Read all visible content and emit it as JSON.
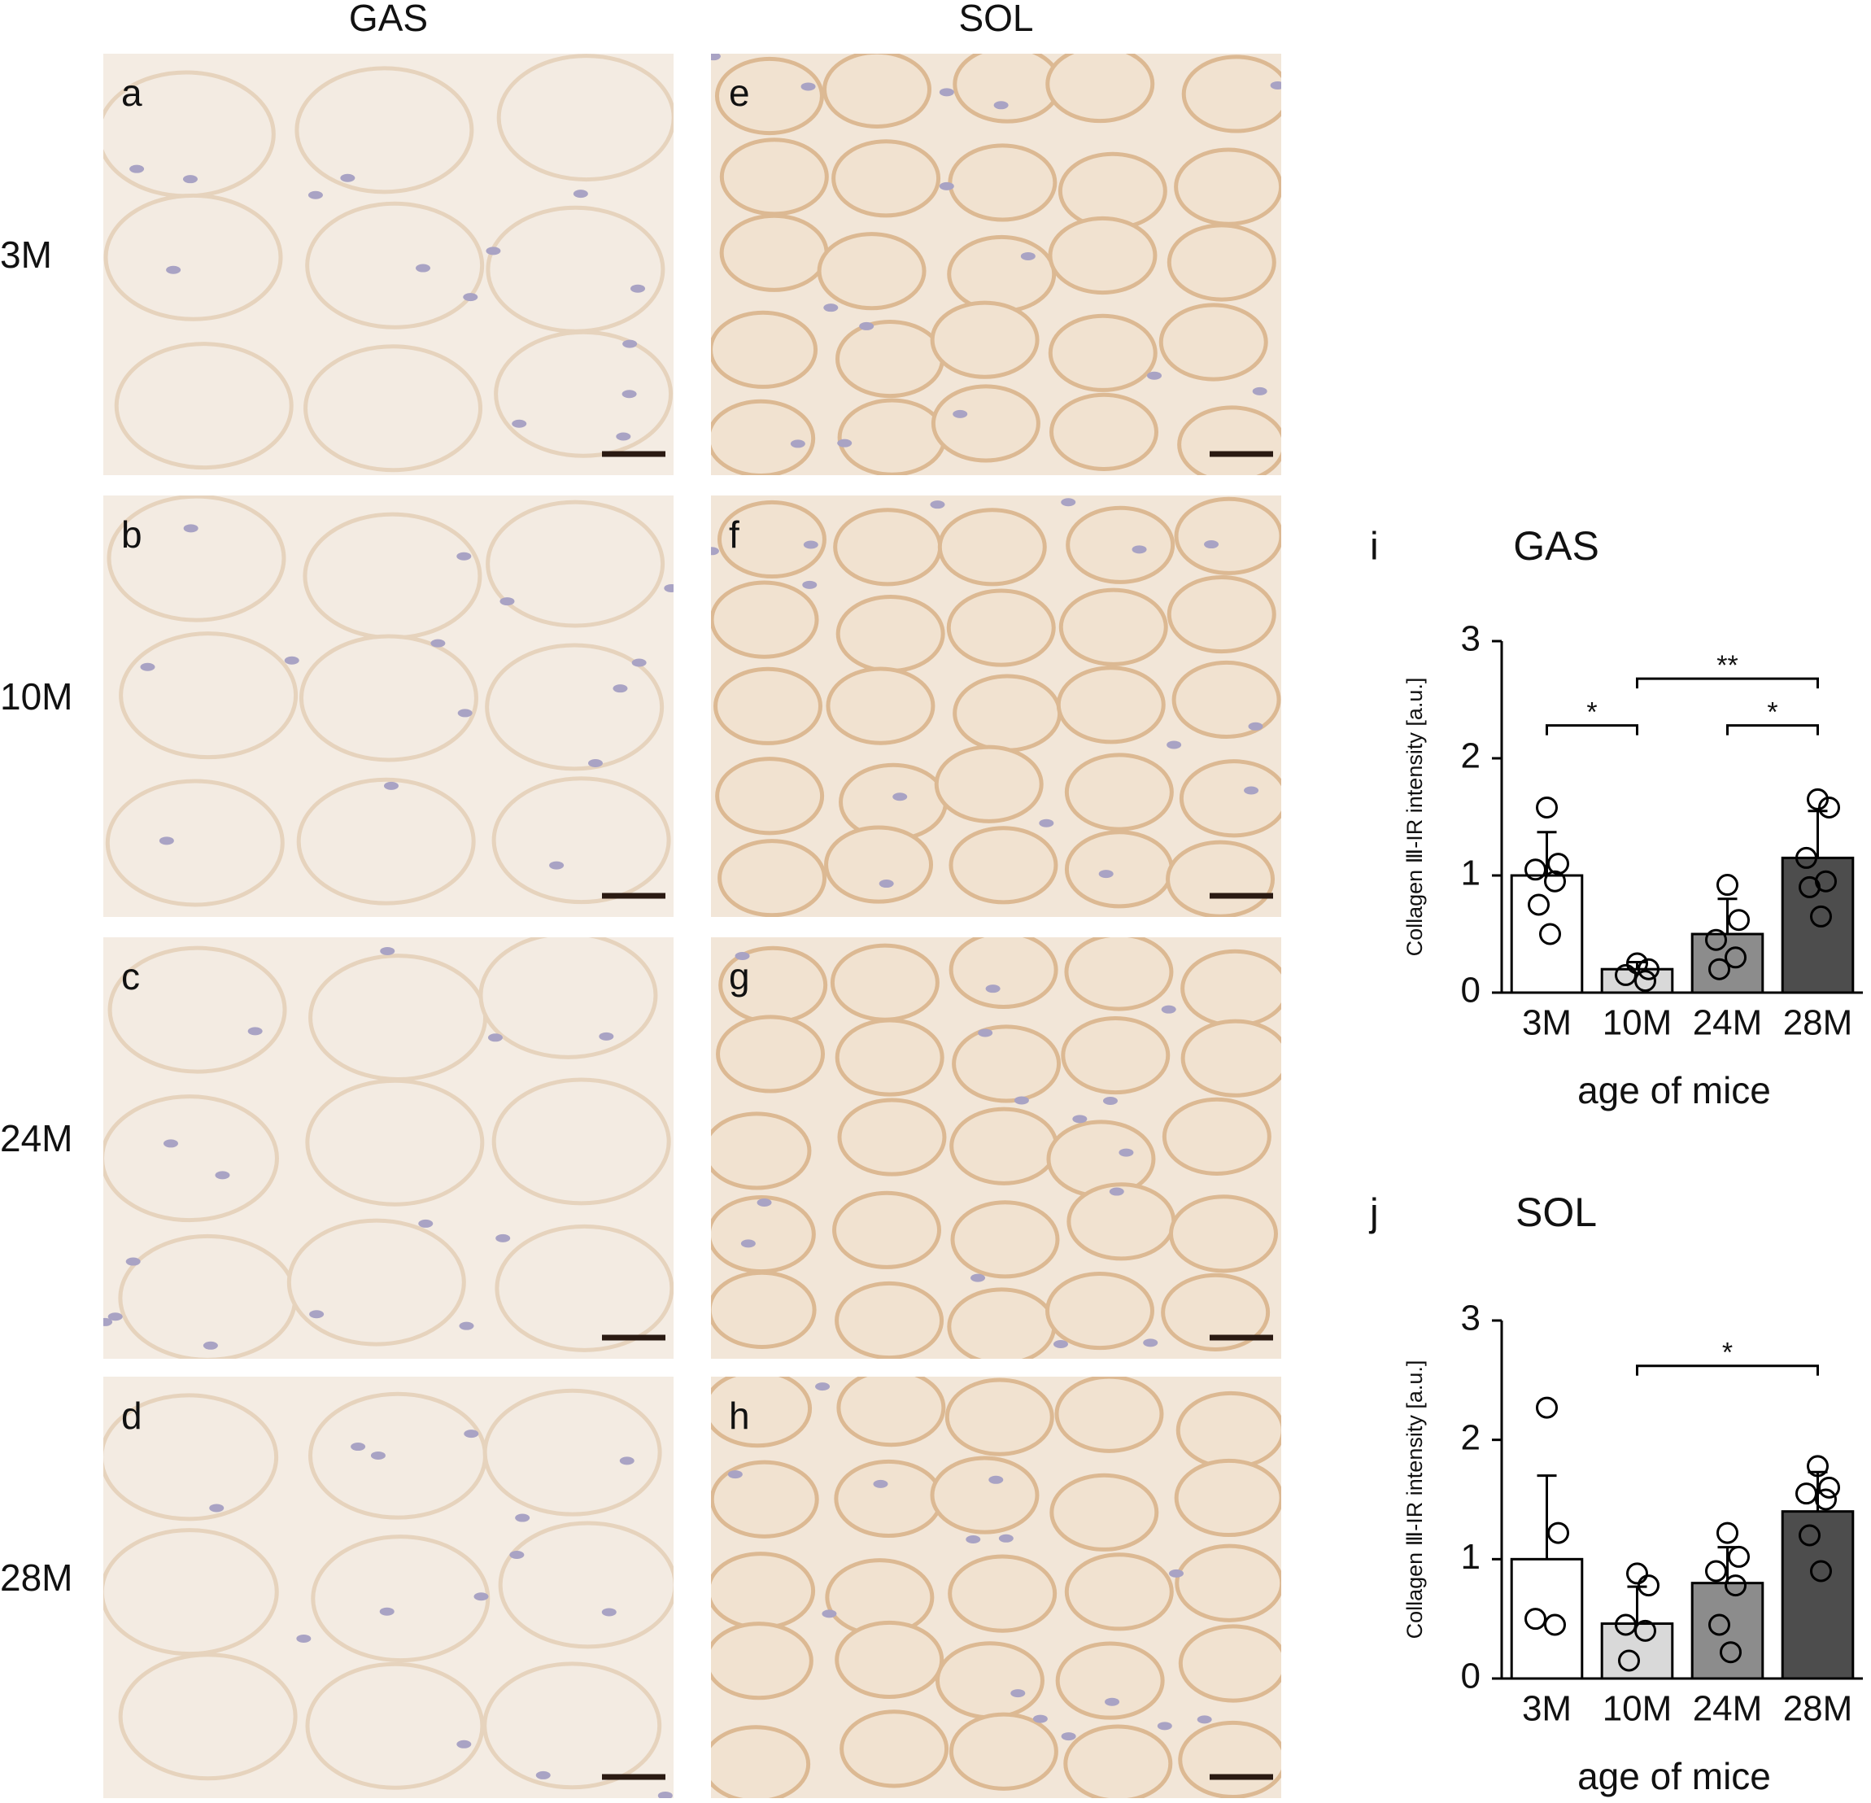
{
  "figure": {
    "column_headers": [
      "GAS",
      "SOL"
    ],
    "row_labels": [
      "3M",
      "10M",
      "24M",
      "28M"
    ],
    "panel_letters": [
      [
        "a",
        "b",
        "c",
        "d"
      ],
      [
        "e",
        "f",
        "g",
        "h"
      ]
    ]
  },
  "chart_data": [
    {
      "type": "bar",
      "panel_letter": "i",
      "title": "GAS",
      "y_label": "Collagen Ⅲ-IR intensity [a.u.]",
      "x_label": "age of mice",
      "categories": [
        "3M",
        "10M",
        "24M",
        "28M"
      ],
      "values": [
        1.0,
        0.2,
        0.5,
        1.15
      ],
      "errors": [
        0.37,
        0.06,
        0.3,
        0.4
      ],
      "colors": [
        "#ffffff",
        "#d9d9d9",
        "#8c8c8c",
        "#4d4d4d"
      ],
      "points": [
        [
          1.58,
          1.1,
          1.05,
          0.95,
          0.75,
          0.5
        ],
        [
          0.25,
          0.2,
          0.15,
          0.1
        ],
        [
          0.92,
          0.62,
          0.45,
          0.3,
          0.2
        ],
        [
          1.65,
          1.58,
          1.15,
          0.95,
          0.9,
          0.65
        ]
      ],
      "ylim": [
        0,
        3
      ],
      "yticks": [
        0,
        1,
        2,
        3
      ],
      "annotations": [
        {
          "from": "3M",
          "to": "10M",
          "y": 2.28,
          "label": "*"
        },
        {
          "from": "10M",
          "to": "28M",
          "y": 2.68,
          "label": "**"
        },
        {
          "from": "24M",
          "to": "28M",
          "y": 2.28,
          "label": "*"
        }
      ]
    },
    {
      "type": "bar",
      "panel_letter": "j",
      "title": "SOL",
      "y_label": "Collagen Ⅲ-IR intensity [a.u.]",
      "x_label": "age of mice",
      "categories": [
        "3M",
        "10M",
        "24M",
        "28M"
      ],
      "values": [
        1.0,
        0.46,
        0.8,
        1.4
      ],
      "errors": [
        0.7,
        0.31,
        0.3,
        0.33
      ],
      "colors": [
        "#ffffff",
        "#d9d9d9",
        "#8c8c8c",
        "#4d4d4d"
      ],
      "points": [
        [
          2.27,
          1.22,
          0.5,
          0.45
        ],
        [
          0.88,
          0.78,
          0.45,
          0.4,
          0.15
        ],
        [
          1.22,
          1.02,
          0.9,
          0.78,
          0.45,
          0.22
        ],
        [
          1.78,
          1.6,
          1.55,
          1.5,
          1.2,
          0.9
        ]
      ],
      "ylim": [
        0,
        3
      ],
      "yticks": [
        0,
        1,
        2,
        3
      ],
      "annotations": [
        {
          "from": "10M",
          "to": "28M",
          "y": 2.62,
          "label": "*"
        }
      ]
    }
  ]
}
